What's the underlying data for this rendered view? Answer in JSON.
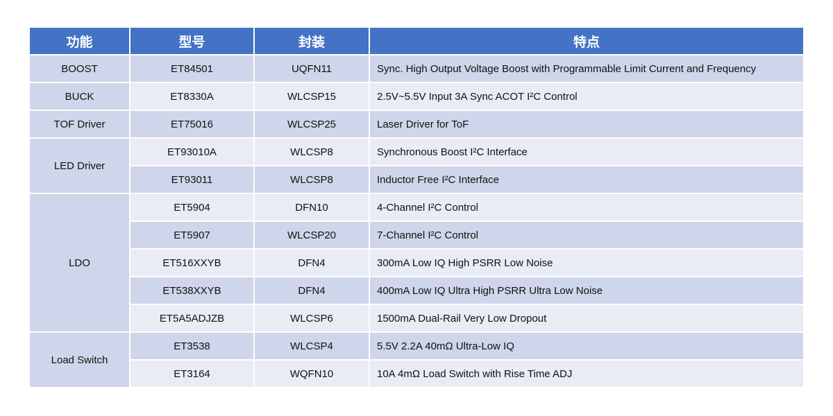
{
  "table": {
    "headers": [
      "功能",
      "型号",
      "封装",
      "特点"
    ],
    "groups": [
      {
        "function": "BOOST",
        "rows": [
          {
            "model": "ET84501",
            "package": "UQFN11",
            "feature": "Sync. High Output Voltage Boost with Programmable Limit Current and Frequency"
          }
        ]
      },
      {
        "function": "BUCK",
        "rows": [
          {
            "model": "ET8330A",
            "package": "WLCSP15",
            "feature": "2.5V~5.5V Input 3A Sync ACOT I²C Control"
          }
        ]
      },
      {
        "function": "TOF Driver",
        "rows": [
          {
            "model": "ET75016",
            "package": "WLCSP25",
            "feature": "Laser Driver for ToF"
          }
        ]
      },
      {
        "function": "LED Driver",
        "rows": [
          {
            "model": "ET93010A",
            "package": "WLCSP8",
            "feature": "Synchronous Boost I²C Interface"
          },
          {
            "model": "ET93011",
            "package": "WLCSP8",
            "feature": "Inductor Free I²C Interface"
          }
        ]
      },
      {
        "function": "LDO",
        "rows": [
          {
            "model": "ET5904",
            "package": "DFN10",
            "feature": "4-Channel I²C Control"
          },
          {
            "model": "ET5907",
            "package": "WLCSP20",
            "feature": "7-Channel I²C Control"
          },
          {
            "model": "ET516XXYB",
            "package": "DFN4",
            "feature": "300mA Low IQ High PSRR Low Noise"
          },
          {
            "model": "ET538XXYB",
            "package": "DFN4",
            "feature": "400mA Low IQ Ultra High PSRR Ultra Low Noise"
          },
          {
            "model": "ET5A5ADJZB",
            "package": "WLCSP6",
            "feature": "1500mA Dual-Rail Very Low Dropout"
          }
        ]
      },
      {
        "function": "Load Switch",
        "rows": [
          {
            "model": "ET3538",
            "package": "WLCSP4",
            "feature": "5.5V 2.2A 40mΩ Ultra-Low IQ"
          },
          {
            "model": "ET3164",
            "package": "WQFN10",
            "feature": "10A 4mΩ Load Switch with Rise Time ADJ"
          }
        ]
      }
    ]
  },
  "colors": {
    "header_bg": "#4472c4",
    "row_dark": "#cfd5ea",
    "row_light": "#e9ebf5"
  }
}
